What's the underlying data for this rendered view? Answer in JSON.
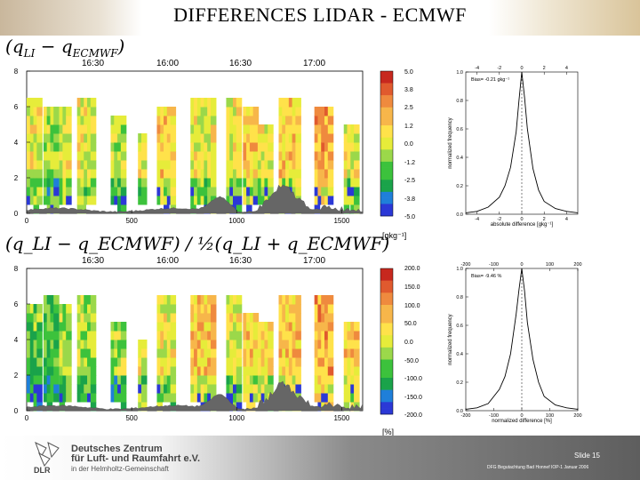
{
  "title": "DIFFERENCES LIDAR - ECMWF",
  "formula_top": {
    "q1": "q",
    "s1": "LI",
    "mid": " − q",
    "s2": "ECMWF"
  },
  "formula_bottom": {
    "text": "(q_LI − q_ECMWF) / ½(q_LI + q_ECMWF)"
  },
  "time_labels_top": [
    "16:30",
    "16:00",
    "16:30",
    "17:00"
  ],
  "time_labels_bottom": [
    "16:30",
    "16:00",
    "16:30",
    "17:00"
  ],
  "colorbar_top": {
    "labels": [
      "5.0",
      "3.8",
      "2.5",
      "1.2",
      "0.0",
      "-1.2",
      "-2.5",
      "-3.8",
      "-5.0"
    ],
    "unit": "[gkg⁻¹]"
  },
  "colorbar_bottom": {
    "labels": [
      "200.0",
      "150.0",
      "100.0",
      "50.0",
      "0.0",
      "-50.0",
      "-100.0",
      "-150.0",
      "-200.0"
    ],
    "unit": "[%]"
  },
  "colors": {
    "palette": [
      "#2b38d6",
      "#1f7fd9",
      "#1aa34a",
      "#3cc23c",
      "#9bd84a",
      "#e6ec3a",
      "#ffe24a",
      "#f7b64a",
      "#ef8a3e",
      "#e05a2e",
      "#c7281e"
    ],
    "terrain": "#666666"
  },
  "chart_data": [
    {
      "type": "heatmap",
      "title": "q_LI − q_ECMWF",
      "xlabel": "",
      "ylabel": "",
      "x_ticks": [
        "0",
        "500",
        "1000",
        "1500"
      ],
      "y_ticks": [
        "0",
        "2",
        "4",
        "6",
        "8"
      ],
      "xlim": [
        0,
        1600
      ],
      "ylim": [
        0,
        8
      ],
      "colorbar_range": [
        -5.0,
        5.0
      ],
      "colorbar_unit": "gkg⁻¹"
    },
    {
      "type": "line",
      "title": "Bias= -0.21 gkg⁻¹",
      "xlabel": "absolute difference [gkg⁻¹]",
      "ylabel": "normalized frequency",
      "top_ticks": [
        "-4",
        "-2",
        "0",
        "2",
        "4"
      ],
      "bottom_ticks": [
        "-4",
        "-2",
        "0",
        "2",
        "4"
      ],
      "y_ticks": [
        "0.0",
        "0.2",
        "0.4",
        "0.6",
        "0.8",
        "1.0"
      ],
      "xlim": [
        -5,
        5
      ],
      "ylim": [
        0,
        1.0
      ],
      "x": [
        -5,
        -4,
        -3,
        -2,
        -1.5,
        -1,
        -0.5,
        -0.25,
        0,
        0.25,
        0.5,
        1,
        1.5,
        2,
        3,
        4,
        5
      ],
      "y": [
        0.01,
        0.02,
        0.05,
        0.12,
        0.2,
        0.33,
        0.58,
        0.8,
        1.0,
        0.82,
        0.6,
        0.32,
        0.17,
        0.09,
        0.04,
        0.02,
        0.01
      ]
    },
    {
      "type": "heatmap",
      "title": "(q_LI − q_ECMWF) / ½(q_LI + q_ECMWF)",
      "xlabel": "",
      "ylabel": "",
      "x_ticks": [
        "0",
        "500",
        "1000",
        "1500"
      ],
      "y_ticks": [
        "0",
        "2",
        "4",
        "6",
        "8"
      ],
      "xlim": [
        0,
        1600
      ],
      "ylim": [
        0,
        8
      ],
      "colorbar_range": [
        -200.0,
        200.0
      ],
      "colorbar_unit": "%"
    },
    {
      "type": "line",
      "title": "Bias= -9.46 %",
      "xlabel": "normalized difference [%]",
      "ylabel": "normalized frequency",
      "top_ticks": [
        "-200",
        "-100",
        "0",
        "100",
        "200"
      ],
      "bottom_ticks": [
        "-200",
        "-100",
        "0",
        "100",
        "200"
      ],
      "y_ticks": [
        "0.0",
        "0.2",
        "0.4",
        "0.6",
        "0.8",
        "1.0"
      ],
      "xlim": [
        -200,
        200
      ],
      "ylim": [
        0,
        1.0
      ],
      "x": [
        -200,
        -160,
        -120,
        -80,
        -60,
        -40,
        -20,
        -10,
        0,
        10,
        20,
        40,
        60,
        80,
        120,
        160,
        200
      ],
      "y": [
        0.01,
        0.02,
        0.05,
        0.15,
        0.24,
        0.4,
        0.68,
        0.85,
        1.0,
        0.84,
        0.62,
        0.36,
        0.2,
        0.1,
        0.04,
        0.02,
        0.01
      ]
    }
  ],
  "footer": {
    "org_line1": "Deutsches Zentrum",
    "org_line2": "für Luft- und Raumfahrt e.V.",
    "org_line3": "in der Helmholtz-Gemeinschaft",
    "slide_num": "Slide 15",
    "caption": "DFG Begutachtung Bad Honnef IOP-1 Januar 2006",
    "logo_text": "DLR"
  }
}
